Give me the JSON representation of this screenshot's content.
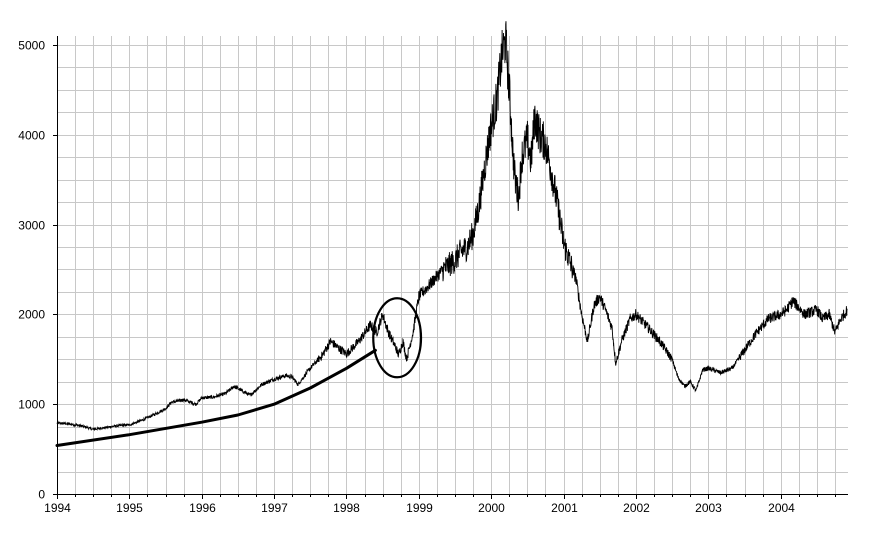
{
  "chart_data": {
    "type": "line",
    "title": "",
    "xlabel": "",
    "ylabel": "",
    "xlim": [
      1994.0,
      2004.93
    ],
    "ylim": [
      0,
      5100
    ],
    "grid": true,
    "grid_x_step": 0.25,
    "grid_y_step": 250,
    "x_ticks": [
      1994,
      1995,
      1996,
      1997,
      1998,
      1999,
      2000,
      2001,
      2002,
      2003,
      2004
    ],
    "x_tick_labels": [
      "1994",
      "1995",
      "1996",
      "1997",
      "1998",
      "1999",
      "2000",
      "2001",
      "2002",
      "2003",
      "2004"
    ],
    "y_ticks": [
      0,
      1000,
      2000,
      3000,
      4000,
      5000
    ],
    "y_tick_labels": [
      "0",
      "1000",
      "2000",
      "3000",
      "4000",
      "5000"
    ],
    "series": [
      {
        "color": "#000000",
        "x": [
          1994.0,
          1994.17,
          1994.33,
          1994.5,
          1994.67,
          1994.83,
          1995.0,
          1995.17,
          1995.33,
          1995.5,
          1995.58,
          1995.75,
          1995.92,
          1996.0,
          1996.17,
          1996.33,
          1996.45,
          1996.55,
          1996.67,
          1996.83,
          1997.0,
          1997.17,
          1997.25,
          1997.33,
          1997.5,
          1997.67,
          1997.78,
          1997.9,
          1998.0,
          1998.17,
          1998.33,
          1998.42,
          1998.5,
          1998.58,
          1998.67,
          1998.72,
          1998.78,
          1998.83,
          1998.92,
          1999.0,
          1999.17,
          1999.33,
          1999.5,
          1999.58,
          1999.67,
          1999.75,
          1999.83,
          1999.92,
          2000.0,
          2000.08,
          2000.15,
          2000.2,
          2000.25,
          2000.3,
          2000.33,
          2000.38,
          2000.42,
          2000.5,
          2000.55,
          2000.6,
          2000.67,
          2000.75,
          2000.83,
          2000.92,
          2001.0,
          2001.08,
          2001.17,
          2001.25,
          2001.33,
          2001.42,
          2001.5,
          2001.58,
          2001.67,
          2001.72,
          2001.8,
          2001.92,
          2002.0,
          2002.17,
          2002.33,
          2002.5,
          2002.58,
          2002.67,
          2002.75,
          2002.83,
          2002.92,
          2003.0,
          2003.17,
          2003.33,
          2003.5,
          2003.67,
          2003.83,
          2004.0,
          2004.08,
          2004.17,
          2004.33,
          2004.5,
          2004.58,
          2004.67,
          2004.75,
          2004.83,
          2004.92
        ],
        "values": [
          790,
          780,
          760,
          720,
          740,
          760,
          770,
          820,
          880,
          950,
          1020,
          1050,
          1000,
          1070,
          1080,
          1120,
          1200,
          1150,
          1100,
          1220,
          1280,
          1320,
          1300,
          1220,
          1400,
          1550,
          1700,
          1620,
          1560,
          1700,
          1880,
          1800,
          2000,
          1800,
          1650,
          1550,
          1700,
          1500,
          1800,
          2200,
          2350,
          2500,
          2600,
          2700,
          2750,
          2900,
          3200,
          3700,
          4100,
          4400,
          4900,
          5050,
          4500,
          3800,
          3500,
          3300,
          3750,
          3950,
          3700,
          4200,
          4000,
          3900,
          3600,
          3200,
          2800,
          2600,
          2400,
          2000,
          1700,
          2100,
          2200,
          2050,
          1850,
          1450,
          1700,
          1950,
          2000,
          1850,
          1700,
          1500,
          1300,
          1200,
          1250,
          1150,
          1380,
          1400,
          1350,
          1400,
          1600,
          1800,
          1950,
          2000,
          2050,
          2150,
          2000,
          2050,
          1950,
          2000,
          1800,
          1950,
          2050
        ]
      }
    ],
    "annotations": [
      {
        "type": "trend-curve",
        "x": [
          1994.0,
          1995.0,
          1996.0,
          1996.5,
          1997.0,
          1997.5,
          1998.0,
          1998.4
        ],
        "values": [
          540,
          660,
          800,
          880,
          1000,
          1180,
          1400,
          1600
        ]
      },
      {
        "type": "ellipse",
        "center_x": 1998.7,
        "center_y": 1740,
        "radius_x": 0.33,
        "radius_y": 440
      }
    ]
  }
}
